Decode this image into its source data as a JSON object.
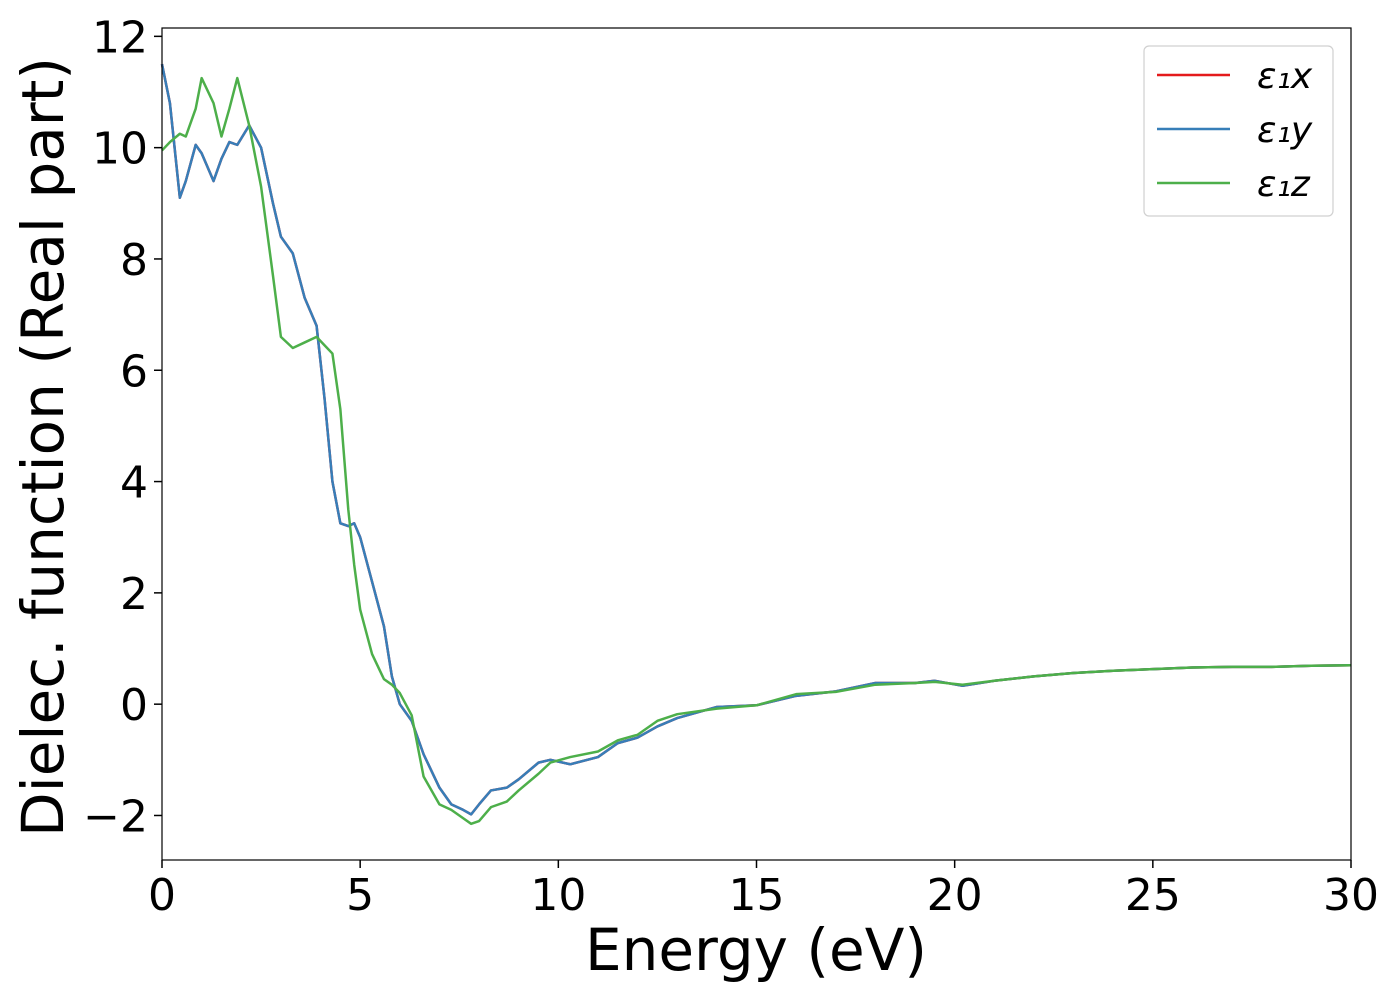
{
  "chart_data": {
    "type": "line",
    "xlabel": "Energy (eV)",
    "ylabel": "Dielec. function (Real part)",
    "x": [
      0,
      0.2,
      0.45,
      0.6,
      0.85,
      1.0,
      1.3,
      1.5,
      1.7,
      1.9,
      2.2,
      2.5,
      2.8,
      3.0,
      3.3,
      3.6,
      3.9,
      4.1,
      4.3,
      4.5,
      4.7,
      4.85,
      5.0,
      5.3,
      5.6,
      5.8,
      6.0,
      6.3,
      6.6,
      7.0,
      7.3,
      7.6,
      7.8,
      8.0,
      8.3,
      8.7,
      9.0,
      9.5,
      9.8,
      10.3,
      11.0,
      11.5,
      12.0,
      12.5,
      13.0,
      14.0,
      15.0,
      16.0,
      17.0,
      18.0,
      19.0,
      19.5,
      20.2,
      21.0,
      22.0,
      23.0,
      24.0,
      25.0,
      26.0,
      27.0,
      28.0,
      29.0,
      30.0
    ],
    "series": [
      {
        "name": "ε₁x",
        "color": "#e41a1c",
        "values": [
          11.5,
          10.8,
          9.1,
          9.4,
          10.05,
          9.9,
          9.4,
          9.8,
          10.1,
          10.05,
          10.4,
          10.0,
          9.0,
          8.4,
          8.1,
          7.3,
          6.8,
          5.5,
          4.0,
          3.25,
          3.2,
          3.25,
          3.0,
          2.2,
          1.4,
          0.5,
          0.0,
          -0.3,
          -0.9,
          -1.5,
          -1.8,
          -1.9,
          -1.98,
          -1.8,
          -1.55,
          -1.5,
          -1.35,
          -1.05,
          -1.0,
          -1.08,
          -0.95,
          -0.7,
          -0.6,
          -0.4,
          -0.25,
          -0.05,
          -0.02,
          0.15,
          0.23,
          0.38,
          0.38,
          0.42,
          0.33,
          0.42,
          0.5,
          0.56,
          0.6,
          0.63,
          0.66,
          0.67,
          0.67,
          0.69,
          0.7
        ]
      },
      {
        "name": "ε₁y",
        "color": "#377eb8",
        "values": [
          11.5,
          10.8,
          9.1,
          9.4,
          10.05,
          9.9,
          9.4,
          9.8,
          10.1,
          10.05,
          10.4,
          10.0,
          9.0,
          8.4,
          8.1,
          7.3,
          6.8,
          5.5,
          4.0,
          3.25,
          3.2,
          3.25,
          3.0,
          2.2,
          1.4,
          0.5,
          0.0,
          -0.3,
          -0.9,
          -1.5,
          -1.8,
          -1.9,
          -1.98,
          -1.8,
          -1.55,
          -1.5,
          -1.35,
          -1.05,
          -1.0,
          -1.08,
          -0.95,
          -0.7,
          -0.6,
          -0.4,
          -0.25,
          -0.05,
          -0.02,
          0.15,
          0.23,
          0.38,
          0.38,
          0.42,
          0.33,
          0.42,
          0.5,
          0.56,
          0.6,
          0.63,
          0.66,
          0.67,
          0.67,
          0.69,
          0.7
        ]
      },
      {
        "name": "ε₁z",
        "color": "#4daf4a",
        "values": [
          9.95,
          10.1,
          10.25,
          10.2,
          10.7,
          11.25,
          10.8,
          10.2,
          10.7,
          11.25,
          10.4,
          9.3,
          7.7,
          6.6,
          6.4,
          6.5,
          6.6,
          6.45,
          6.3,
          5.3,
          3.5,
          2.5,
          1.7,
          0.9,
          0.45,
          0.35,
          0.2,
          -0.2,
          -1.3,
          -1.8,
          -1.9,
          -2.05,
          -2.15,
          -2.1,
          -1.85,
          -1.75,
          -1.55,
          -1.25,
          -1.05,
          -0.95,
          -0.85,
          -0.65,
          -0.55,
          -0.3,
          -0.18,
          -0.08,
          -0.02,
          0.18,
          0.22,
          0.35,
          0.38,
          0.4,
          0.35,
          0.42,
          0.5,
          0.56,
          0.6,
          0.63,
          0.66,
          0.67,
          0.67,
          0.69,
          0.7
        ]
      }
    ],
    "xlim": [
      0,
      30
    ],
    "xticks": [
      0,
      5,
      10,
      15,
      20,
      25,
      30
    ],
    "ylim": [
      -2.8,
      12.15
    ],
    "yticks": [
      {
        "value": -2,
        "label": "−2"
      },
      0,
      2,
      4,
      6,
      8,
      10,
      12
    ],
    "grid": false,
    "legend": "upper right"
  }
}
